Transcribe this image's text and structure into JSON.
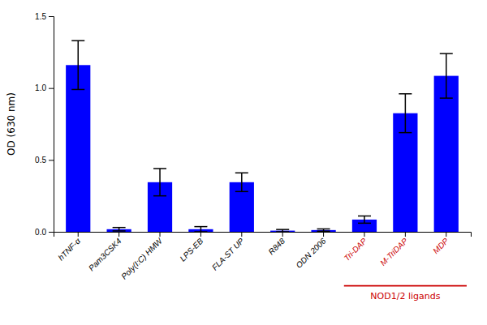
{
  "chart_data": {
    "type": "bar",
    "categories": [
      "hTNF-α",
      "Pam3CSK4",
      "Poly(I:C) HMW",
      "LPS-EB",
      "FLA-ST UP",
      "R848",
      "ODN 2006",
      "Tri-DAP",
      "M-TriDAP",
      "MDP"
    ],
    "values": [
      1.16,
      0.018,
      0.345,
      0.018,
      0.345,
      0.008,
      0.012,
      0.085,
      0.825,
      1.085
    ],
    "errors": [
      0.17,
      0.012,
      0.095,
      0.018,
      0.065,
      0.008,
      0.008,
      0.025,
      0.135,
      0.155
    ],
    "color": "#0000ff",
    "ylabel": "OD (630 nm)",
    "ylim": [
      0,
      1.5
    ],
    "yticks": [
      {
        "value": 0,
        "label": "0.0"
      },
      0.5,
      {
        "value": 1,
        "label": "1.0"
      },
      1.5
    ],
    "grid": false,
    "annotations": [
      {
        "text": "NOD1/2 ligands",
        "color": "#cc0000",
        "categories": [
          "Tri-DAP",
          "M-TriDAP",
          "MDP"
        ]
      }
    ]
  }
}
